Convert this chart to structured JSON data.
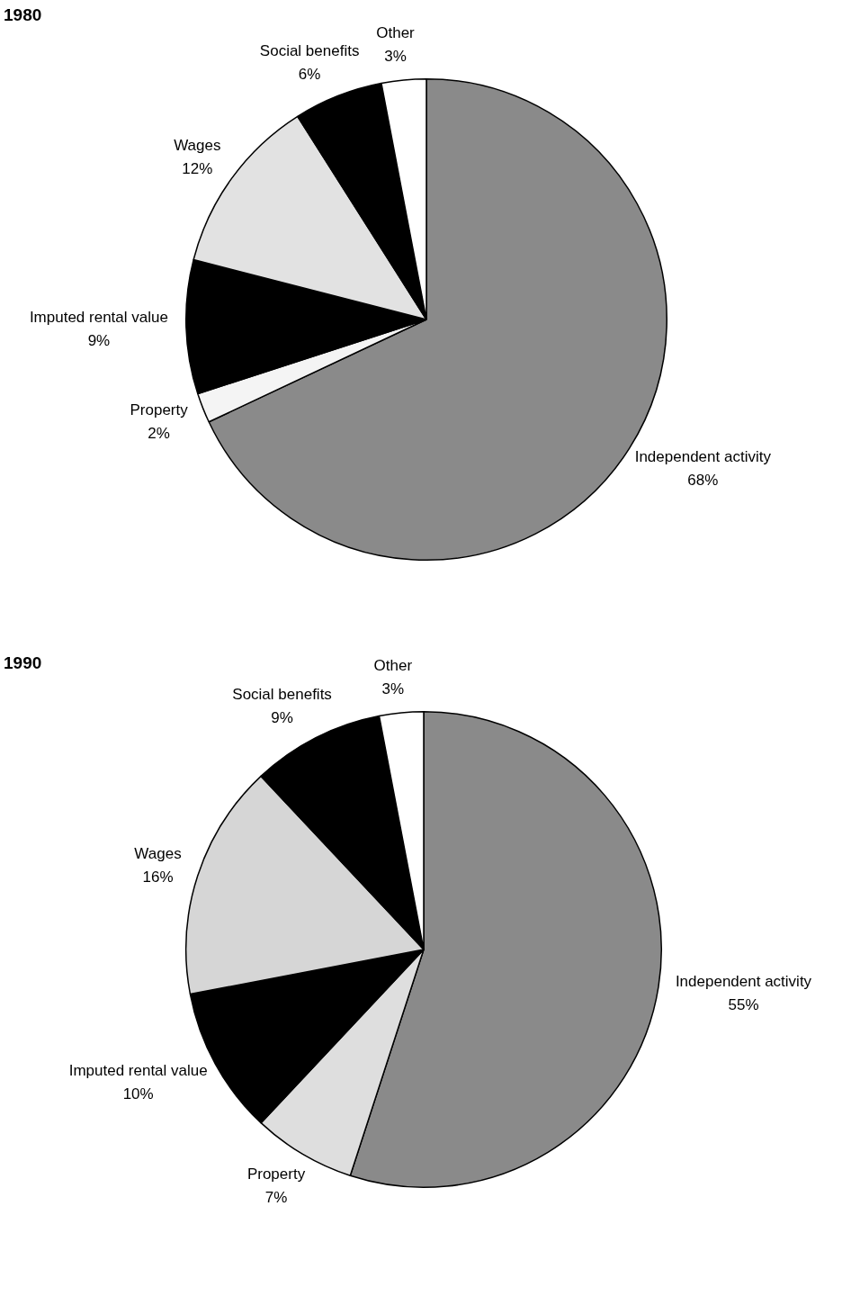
{
  "chart_data": [
    {
      "type": "pie",
      "title": "1980",
      "categories": [
        "Independent activity",
        "Property",
        "Imputed rental value",
        "Wages",
        "Social benefits",
        "Other"
      ],
      "values": [
        68,
        2,
        9,
        12,
        6,
        3
      ],
      "value_labels": [
        "68%",
        "2%",
        "9%",
        "12%",
        "6%",
        "3%"
      ],
      "colors": [
        "#8a8a8a",
        "#f4f4f4",
        "#000000",
        "#e2e2e2",
        "#000000",
        "#ffffff"
      ],
      "legend": false
    },
    {
      "type": "pie",
      "title": "1990",
      "categories": [
        "Independent activity",
        "Property",
        "Imputed rental value",
        "Wages",
        "Social benefits",
        "Other"
      ],
      "values": [
        55,
        7,
        10,
        16,
        9,
        3
      ],
      "value_labels": [
        "55%",
        "7%",
        "10%",
        "16%",
        "9%",
        "3%"
      ],
      "colors": [
        "#8a8a8a",
        "#dedede",
        "#000000",
        "#d6d6d6",
        "#000000",
        "#ffffff"
      ],
      "legend": false
    }
  ]
}
